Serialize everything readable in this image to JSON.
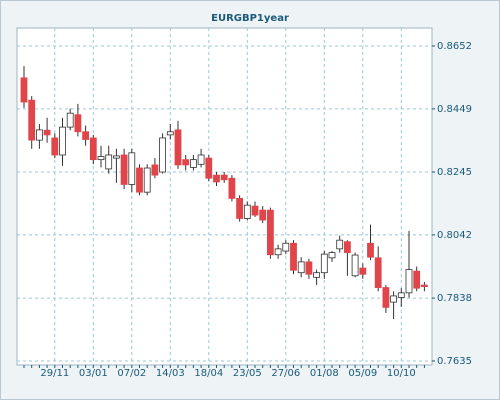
{
  "chart_data": {
    "type": "candlestick",
    "title": "EURGBP1year",
    "categories": [
      null,
      null,
      null,
      null,
      "29/11",
      null,
      null,
      null,
      null,
      "03/01",
      null,
      null,
      null,
      null,
      "07/02",
      null,
      null,
      null,
      null,
      "14/03",
      null,
      null,
      null,
      null,
      "18/04",
      null,
      null,
      null,
      null,
      "23/05",
      null,
      null,
      null,
      null,
      "27/06",
      null,
      null,
      null,
      null,
      "01/08",
      null,
      null,
      null,
      null,
      "05/09",
      null,
      null,
      null,
      null,
      "10/10",
      null,
      null,
      null
    ],
    "open": [
      0.8549,
      0.8477,
      0.8348,
      0.838,
      0.8355,
      0.83,
      0.839,
      0.843,
      0.8375,
      0.8355,
      0.8285,
      0.8255,
      0.829,
      0.83,
      0.8205,
      0.8258,
      0.818,
      0.8268,
      0.8245,
      0.8365,
      0.8381,
      0.8285,
      0.826,
      0.827,
      0.829,
      0.8235,
      0.8235,
      0.8225,
      0.816,
      0.8095,
      0.8135,
      0.8122,
      0.8122,
      0.7978,
      0.799,
      0.8015,
      0.792,
      0.7955,
      0.7905,
      0.792,
      0.7968,
      0.7997,
      0.802,
      0.791,
      0.7935,
      0.8015,
      0.7968,
      0.7872,
      0.7825,
      0.784,
      0.7855,
      0.7925,
      0.788
    ],
    "high": [
      0.8587,
      0.849,
      0.84,
      0.842,
      0.837,
      0.842,
      0.845,
      0.8465,
      0.8395,
      0.8365,
      0.833,
      0.833,
      0.832,
      0.832,
      0.832,
      0.827,
      0.827,
      0.829,
      0.837,
      0.84,
      0.841,
      0.83,
      0.83,
      0.832,
      0.83,
      0.8245,
      0.8245,
      0.8235,
      0.817,
      0.815,
      0.815,
      0.8135,
      0.813,
      0.801,
      0.8025,
      0.8025,
      0.797,
      0.7965,
      0.793,
      0.799,
      0.799,
      0.804,
      0.8025,
      0.7985,
      0.795,
      0.8075,
      0.8005,
      0.788,
      0.786,
      0.787,
      0.8055,
      0.794,
      0.789
    ],
    "low": [
      0.8452,
      0.832,
      0.832,
      0.834,
      0.829,
      0.8265,
      0.838,
      0.836,
      0.833,
      0.827,
      0.826,
      0.824,
      0.821,
      0.819,
      0.818,
      0.817,
      0.817,
      0.8225,
      0.824,
      0.835,
      0.8255,
      0.825,
      0.825,
      0.826,
      0.8215,
      0.82,
      0.821,
      0.815,
      0.8085,
      0.809,
      0.81,
      0.808,
      0.7965,
      0.7965,
      0.798,
      0.7915,
      0.7905,
      0.79,
      0.788,
      0.79,
      0.7955,
      0.7985,
      0.791,
      0.7905,
      0.79,
      0.796,
      0.786,
      0.779,
      0.777,
      0.781,
      0.784,
      0.786,
      0.786
    ],
    "close": [
      0.8471,
      0.8348,
      0.8381,
      0.8365,
      0.83,
      0.839,
      0.8435,
      0.8375,
      0.835,
      0.8285,
      0.8295,
      0.83,
      0.8297,
      0.8205,
      0.8307,
      0.818,
      0.8258,
      0.8235,
      0.8355,
      0.8375,
      0.8268,
      0.8268,
      0.8285,
      0.83,
      0.8225,
      0.8213,
      0.822,
      0.816,
      0.8095,
      0.8138,
      0.8106,
      0.809,
      0.7978,
      0.7997,
      0.8015,
      0.7928,
      0.7955,
      0.7915,
      0.792,
      0.798,
      0.7985,
      0.8025,
      0.7985,
      0.7977,
      0.7915,
      0.797,
      0.7872,
      0.7808,
      0.7845,
      0.7855,
      0.793,
      0.787,
      0.7875
    ],
    "up_color": "#ffffff",
    "down_color": "#e0454a",
    "ylim": [
      0.7622,
      0.871
    ],
    "yticks": [
      0.7635,
      0.7838,
      0.8042,
      0.8245,
      0.8449,
      0.8652
    ],
    "grid": true
  }
}
